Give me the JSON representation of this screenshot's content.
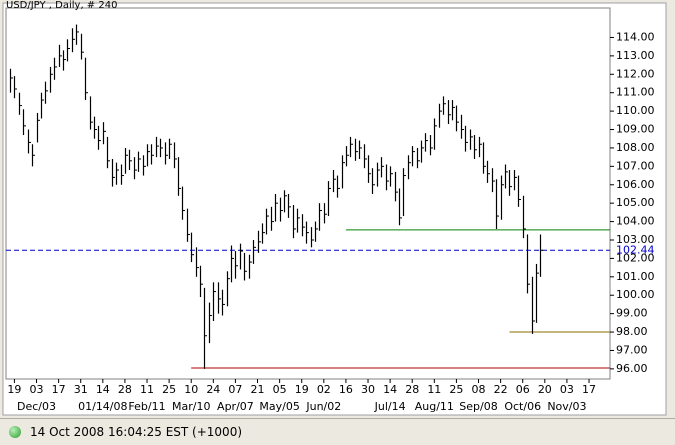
{
  "chart_data": {
    "type": "hlc",
    "title": "USD/JPY , Daily, # 240",
    "ylim": [
      95.45,
      115.6
    ],
    "yticks": [
      {
        "value": 96,
        "label": "96.00"
      },
      {
        "value": 97,
        "label": "97.00"
      },
      {
        "value": 98,
        "label": "98.00"
      },
      {
        "value": 99,
        "label": "99.00"
      },
      {
        "value": 100,
        "label": "100.00"
      },
      {
        "value": 101,
        "label": "101.00"
      },
      {
        "value": 102,
        "label": "102.00"
      },
      {
        "value": 103,
        "label": "103.00"
      },
      {
        "value": 104,
        "label": "104.00"
      },
      {
        "value": 105,
        "label": "105.00"
      },
      {
        "value": 106,
        "label": "106.00"
      },
      {
        "value": 107,
        "label": "107.00"
      },
      {
        "value": 108,
        "label": "108.00"
      },
      {
        "value": 109,
        "label": "109.00"
      },
      {
        "value": 110,
        "label": "110.00"
      },
      {
        "value": 111,
        "label": "111.00"
      },
      {
        "value": 112,
        "label": "112.00"
      },
      {
        "value": 113,
        "label": "113.00"
      },
      {
        "value": 114,
        "label": "114.00"
      }
    ],
    "categories": [
      "19",
      "03",
      "17",
      "31",
      "14",
      "28",
      "11",
      "25",
      "10",
      "24",
      "07",
      "21",
      "05",
      "19",
      "02",
      "16",
      "30",
      "14",
      "28",
      "11",
      "25",
      "08",
      "22",
      "06",
      "20",
      "03",
      "17"
    ],
    "category_sublabels": [
      null,
      "Dec/03",
      null,
      null,
      "01/14/08",
      null,
      "Feb/11",
      null,
      "Mar/10",
      null,
      "Apr/07",
      null,
      "May/05",
      null,
      "Jun/02",
      null,
      null,
      "Jul/14",
      null,
      "Aug/11",
      null,
      "Sep/08",
      null,
      "Oct/06",
      null,
      "Nov/03",
      null
    ],
    "series": [
      {
        "color": "#000000",
        "high": [
          112.3,
          111.9,
          111.0,
          110.1,
          109.0,
          108.2,
          109.9,
          111.0,
          111.6,
          112.4,
          112.9,
          113.6,
          113.3,
          113.9,
          114.5,
          114.7,
          114.2,
          112.9,
          110.8,
          109.7,
          109.2,
          109.4,
          108.6,
          107.4,
          107.2,
          107.1,
          108.0,
          107.9,
          107.5,
          107.8,
          107.6,
          108.2,
          108.2,
          108.6,
          108.5,
          108.3,
          108.5,
          108.3,
          107.5,
          105.9,
          104.7,
          103.4,
          102.6,
          101.6,
          100.4,
          99.6,
          100.7,
          100.7,
          100.3,
          101.3,
          102.7,
          102.4,
          102.8,
          102.3,
          102.2,
          103.0,
          103.5,
          103.9,
          104.7,
          104.8,
          105.5,
          105.3,
          105.7,
          105.5,
          104.9,
          104.7,
          104.4,
          104.0,
          103.7,
          104.0,
          105.0,
          105.0,
          106.2,
          106.8,
          106.5,
          107.6,
          108.1,
          108.6,
          108.5,
          108.4,
          108.2,
          107.6,
          106.9,
          107.2,
          107.5,
          107.1,
          107.0,
          106.7,
          105.8,
          106.9,
          107.6,
          108.1,
          108.0,
          108.4,
          108.8,
          108.7,
          109.6,
          110.4,
          110.8,
          110.6,
          110.6,
          110.3,
          109.8,
          109.2,
          109.0,
          108.7,
          108.6,
          108.3,
          107.3,
          106.9,
          106.3,
          106.5,
          107.1,
          106.8,
          106.8,
          106.5,
          105.4,
          103.3,
          101.0,
          101.7,
          103.3
        ],
        "low": [
          111.0,
          110.7,
          109.8,
          108.7,
          107.7,
          107.0,
          108.3,
          109.6,
          110.4,
          111.0,
          111.7,
          112.4,
          112.2,
          112.7,
          113.2,
          113.6,
          112.8,
          110.6,
          109.0,
          108.5,
          107.9,
          108.2,
          106.9,
          105.9,
          106.0,
          106.0,
          106.6,
          106.8,
          106.3,
          106.7,
          106.5,
          107.0,
          107.1,
          107.5,
          107.5,
          107.1,
          107.4,
          106.9,
          105.4,
          104.1,
          102.9,
          101.8,
          101.0,
          99.9,
          96.0,
          97.4,
          98.6,
          99.0,
          98.9,
          99.4,
          100.7,
          100.9,
          101.4,
          100.8,
          100.9,
          101.7,
          102.3,
          102.8,
          103.3,
          103.5,
          104.0,
          104.0,
          104.5,
          104.2,
          103.1,
          103.4,
          103.2,
          102.8,
          102.6,
          102.9,
          103.5,
          103.9,
          104.3,
          105.6,
          105.3,
          105.8,
          107.0,
          107.5,
          107.3,
          107.4,
          106.9,
          106.1,
          105.5,
          105.9,
          106.4,
          105.7,
          105.9,
          105.1,
          103.8,
          104.3,
          106.3,
          107.0,
          106.9,
          107.2,
          107.8,
          107.6,
          107.9,
          109.1,
          109.8,
          109.3,
          109.5,
          108.9,
          108.5,
          107.8,
          107.9,
          107.4,
          107.5,
          106.6,
          106.1,
          105.6,
          103.6,
          104.1,
          105.8,
          105.4,
          105.7,
          104.8,
          103.1,
          100.1,
          97.9,
          98.5,
          101.0
        ],
        "close": [
          111.8,
          111.2,
          110.3,
          109.2,
          108.3,
          107.6,
          109.5,
          110.6,
          111.1,
          112.0,
          112.4,
          113.0,
          112.8,
          113.4,
          113.9,
          114.3,
          113.2,
          111.0,
          109.4,
          109.0,
          108.4,
          108.9,
          107.3,
          106.4,
          106.8,
          106.5,
          107.6,
          107.3,
          106.8,
          107.4,
          107.0,
          107.8,
          107.6,
          108.1,
          108.0,
          107.6,
          108.2,
          107.4,
          105.8,
          104.6,
          103.3,
          102.2,
          101.5,
          100.6,
          97.8,
          98.9,
          100.2,
          99.8,
          99.5,
          100.9,
          102.0,
          101.6,
          102.4,
          101.3,
          101.8,
          102.6,
          102.9,
          103.4,
          104.3,
          104.0,
          105.0,
          104.6,
          105.4,
          104.8,
          103.6,
          104.2,
          103.7,
          103.4,
          103.0,
          103.6,
          104.6,
          104.4,
          105.8,
          106.3,
          105.8,
          107.2,
          107.6,
          108.2,
          107.8,
          108.0,
          107.4,
          106.6,
          106.0,
          106.8,
          107.0,
          106.2,
          106.6,
          105.6,
          104.2,
          106.5,
          107.2,
          107.8,
          107.3,
          108.0,
          108.4,
          108.0,
          109.2,
          110.0,
          110.4,
          109.8,
          110.2,
          109.4,
          109.0,
          108.3,
          108.6,
          107.9,
          108.2,
          107.0,
          106.6,
          106.2,
          104.3,
          106.0,
          106.7,
          105.9,
          106.4,
          105.2,
          103.6,
          100.6,
          98.6,
          101.2,
          102.44
        ]
      }
    ],
    "price_line": {
      "value": 102.44,
      "label": "102.44",
      "color": "#0000cc"
    },
    "levels": [
      {
        "value": 103.55,
        "color": "#008000",
        "start_bar": 76
      },
      {
        "value": 98.0,
        "color": "#8b6d00",
        "start_bar": 113
      },
      {
        "value": 96.05,
        "color": "#b00000",
        "start_bar": 41
      }
    ]
  },
  "status_bar": {
    "text": "14 Oct 2008 16:04:25 EST (+1000)"
  }
}
